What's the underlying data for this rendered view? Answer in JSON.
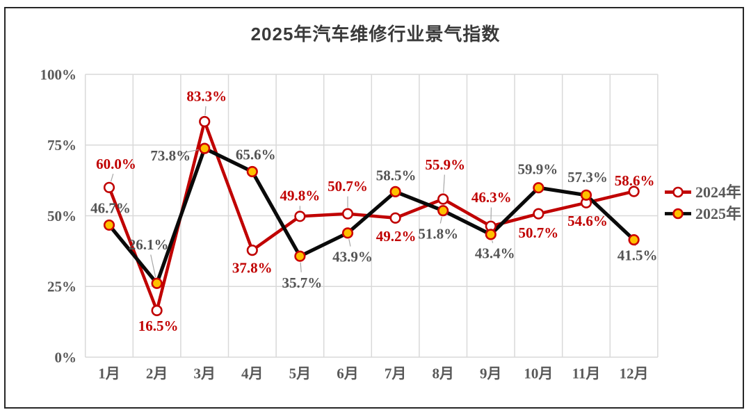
{
  "title": "2025年汽车维修行业景气指数",
  "chart_data": {
    "type": "line",
    "title": "2025年汽车维修行业景气指数",
    "categories": [
      "1月",
      "2月",
      "3月",
      "4月",
      "5月",
      "6月",
      "7月",
      "8月",
      "9月",
      "10月",
      "11月",
      "12月"
    ],
    "series": [
      {
        "name": "2024年",
        "values": [
          60.0,
          16.5,
          83.3,
          37.8,
          49.8,
          50.7,
          49.2,
          55.9,
          46.3,
          50.7,
          54.6,
          58.6
        ],
        "line_color": "#c00000",
        "marker_fill": "#ffffff",
        "marker_ring": "#c00000",
        "label_color": "#c00000",
        "label_offsets": [
          [
            10,
            -34
          ],
          [
            2,
            22
          ],
          [
            3,
            -37
          ],
          [
            0,
            25
          ],
          [
            0,
            -30
          ],
          [
            0,
            -40
          ],
          [
            1,
            26
          ],
          [
            3,
            -50
          ],
          [
            1,
            -42
          ],
          [
            0,
            27
          ],
          [
            2,
            26
          ],
          [
            1,
            -16
          ]
        ],
        "label_leaders": [
          true,
          false,
          true,
          false,
          true,
          true,
          false,
          true,
          true,
          false,
          false,
          false
        ]
      },
      {
        "name": "2025年",
        "values": [
          46.7,
          26.1,
          73.8,
          65.6,
          35.7,
          43.9,
          58.5,
          51.8,
          43.4,
          59.9,
          57.3,
          41.5
        ],
        "line_color": "#0a0a0a",
        "marker_fill": "#ffc000",
        "marker_ring": "#cc0000",
        "label_color": "#545454",
        "label_offsets": [
          [
            2,
            -25
          ],
          [
            -12,
            -56
          ],
          [
            -49,
            10
          ],
          [
            5,
            -25
          ],
          [
            3,
            38
          ],
          [
            7,
            34
          ],
          [
            1,
            -24
          ],
          [
            -7,
            33
          ],
          [
            6,
            27
          ],
          [
            -1,
            -27
          ],
          [
            2,
            -26
          ],
          [
            5,
            22
          ]
        ],
        "label_leaders": [
          false,
          true,
          true,
          false,
          true,
          true,
          true,
          true,
          true,
          false,
          false,
          true
        ]
      }
    ],
    "ylim": [
      0,
      100
    ],
    "yticks": [
      {
        "label": "0%",
        "value": 0
      },
      {
        "label": "25%",
        "value": 25
      },
      {
        "label": "50%",
        "value": 50
      },
      {
        "label": "75%",
        "value": 75
      },
      {
        "label": "100%",
        "value": 100
      }
    ],
    "grid": true,
    "legend_position": "right",
    "label_format": "percent_1dp"
  },
  "colors": {
    "grid": "#d9d9d9",
    "axis_text": "#595959",
    "leader": "#a6a6a6",
    "frame_border": "#262626",
    "title_text": "#3a3a3a",
    "legend_text": "#595959",
    "background": "#ffffff"
  }
}
